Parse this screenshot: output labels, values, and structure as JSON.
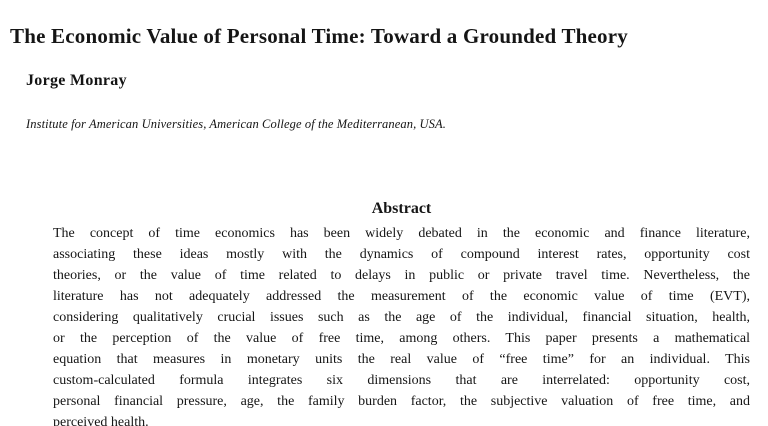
{
  "paper": {
    "title": "The Economic Value of Personal Time: Toward a Grounded Theory",
    "author": "Jorge Monray",
    "affiliation": "Institute for American Universities, American College of the Mediterranean, USA.",
    "abstract": {
      "heading": "Abstract",
      "lines": [
        "The concept of time economics has been widely debated in the economic and finance literature,",
        "associating these ideas mostly with the dynamics of compound interest rates, opportunity cost",
        "theories, or the value of time related to delays in public or private travel time. Nevertheless, the",
        "literature has not adequately addressed the measurement of the economic value of time (EVT),",
        "considering qualitatively crucial issues such as the age of the individual, financial situation, health,",
        "or the perception of the value of free time, among others. This paper presents a mathematical",
        "equation that measures in monetary units the real value of “free time” for an individual. This",
        "custom-calculated formula integrates six dimensions that are interrelated: opportunity cost,",
        "personal financial pressure, age, the family burden factor, the subjective valuation of free time, and",
        "perceived health."
      ]
    },
    "colors": {
      "background": "#ffffff",
      "text": "#151515"
    }
  }
}
